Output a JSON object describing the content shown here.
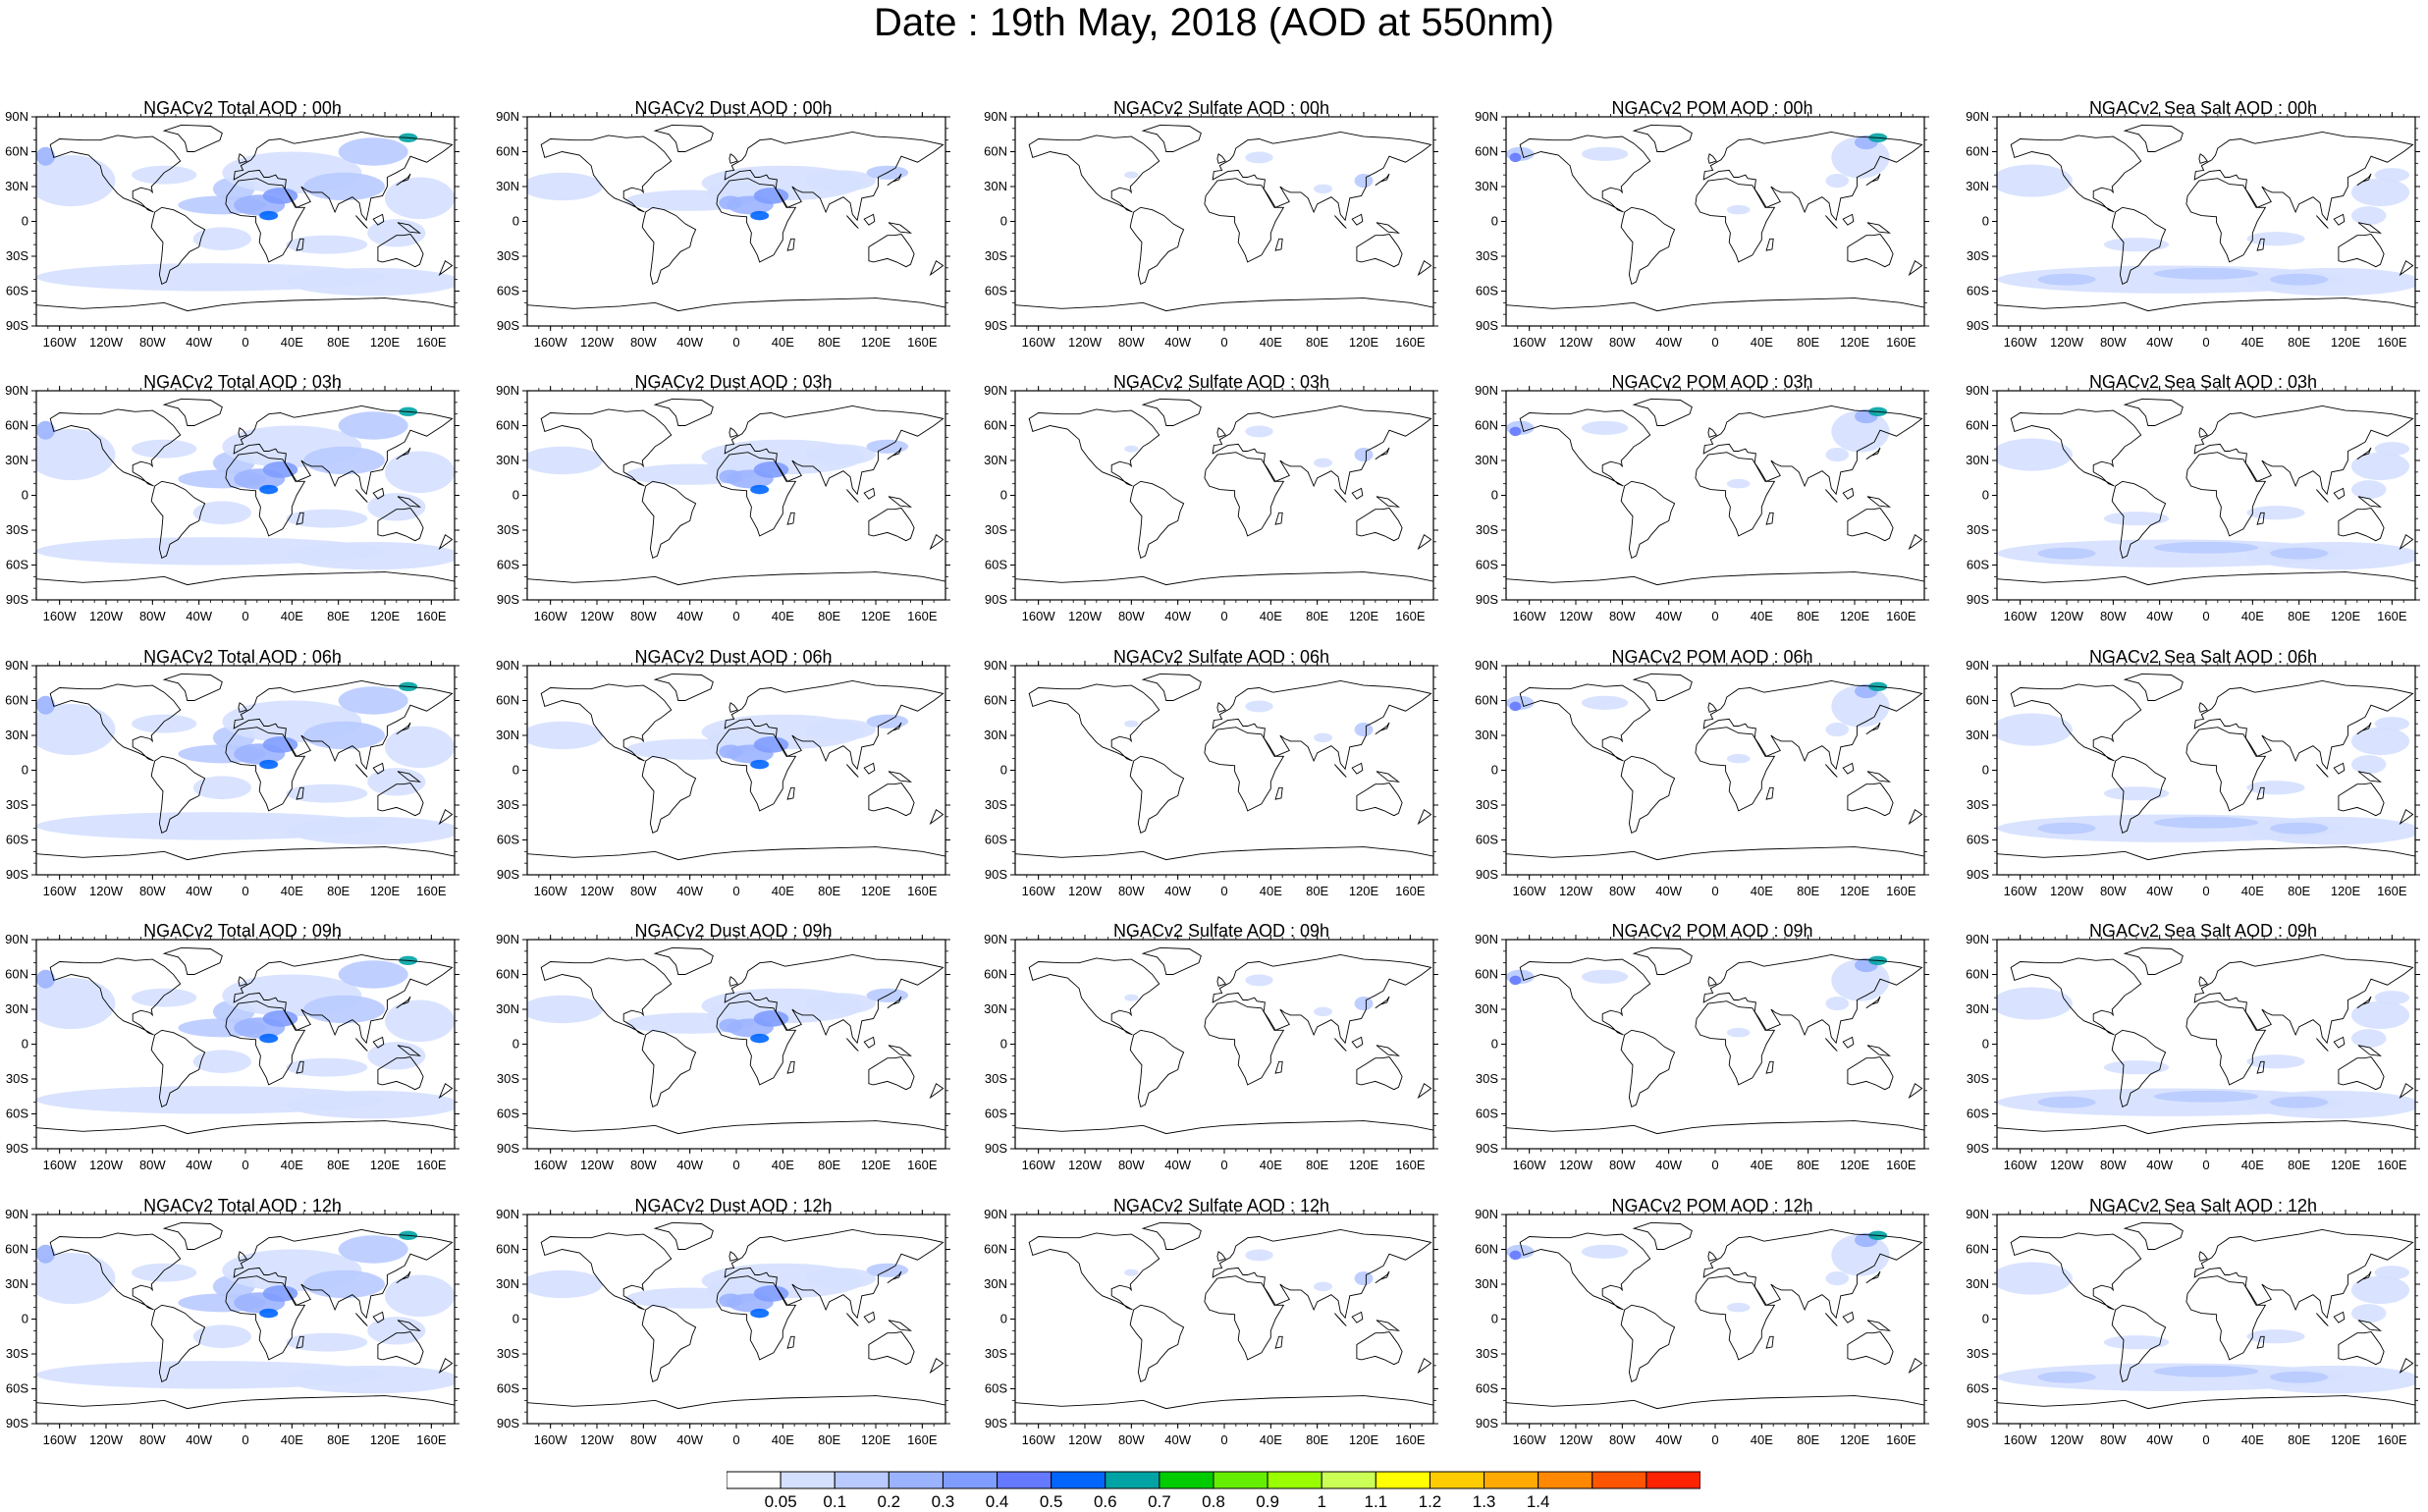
{
  "title": "Date : 19th May, 2018 (AOD at 550nm)",
  "rows": [
    "00h",
    "03h",
    "06h",
    "09h",
    "12h"
  ],
  "columns": [
    "Total",
    "Dust",
    "Sulfate",
    "POM",
    "Sea Salt"
  ],
  "panel_titles": [
    [
      "NGACv2 Total AOD : 00h",
      "NGACv2 Dust AOD : 00h",
      "NGACv2 Sulfate AOD : 00h",
      "NGACv2 POM AOD : 00h",
      "NGACv2 Sea Salt AOD : 00h"
    ],
    [
      "NGACv2 Total AOD : 03h",
      "NGACv2 Dust AOD : 03h",
      "NGACv2 Sulfate AOD : 03h",
      "NGACv2 POM AOD : 03h",
      "NGACv2 Sea Salt AOD : 03h"
    ],
    [
      "NGACv2 Total AOD : 06h",
      "NGACv2 Dust AOD : 06h",
      "NGACv2 Sulfate AOD : 06h",
      "NGACv2 POM AOD : 06h",
      "NGACv2 Sea Salt AOD : 06h"
    ],
    [
      "NGACv2 Total AOD : 09h",
      "NGACv2 Dust AOD : 09h",
      "NGACv2 Sulfate AOD : 09h",
      "NGACv2 POM AOD : 09h",
      "NGACv2 Sea Salt  AOD : 09h"
    ],
    [
      "NGACv2 Total AOD : 12h",
      "NGACv2 Dust AOD : 12h",
      "NGACv2 Sulfate AOD : 12h",
      "NGACv2 POM  AOD : 12h",
      "NGACv2 Sea Salt AOD : 12h"
    ]
  ],
  "lat_labels": [
    "90N",
    "60N",
    "30N",
    "0",
    "30S",
    "60S",
    "90S"
  ],
  "lon_labels": [
    "160W",
    "120W",
    "80W",
    "40W",
    "0",
    "40E",
    "80E",
    "120E",
    "160E"
  ],
  "lon_values": [
    -160,
    -120,
    -80,
    -40,
    0,
    40,
    80,
    120,
    160
  ],
  "lat_values": [
    90,
    60,
    30,
    0,
    -30,
    -60,
    -90
  ],
  "colorbar": {
    "colors": [
      "#ffffff",
      "#d5e0ff",
      "#b8caff",
      "#9bb3ff",
      "#7f9cff",
      "#6479ff",
      "#0066ff",
      "#00a3a3",
      "#00cc00",
      "#66ee00",
      "#99ff00",
      "#ccff55",
      "#ffff00",
      "#ffcc00",
      "#ffaa00",
      "#ff8800",
      "#ff5500",
      "#ff2200"
    ],
    "labels": [
      "0.05",
      "0.1",
      "0.2",
      "0.3",
      "0.4",
      "0.5",
      "0.6",
      "0.7",
      "0.8",
      "0.9",
      "1",
      "1.1",
      "1.2",
      "1.3",
      "1.4"
    ]
  }
}
